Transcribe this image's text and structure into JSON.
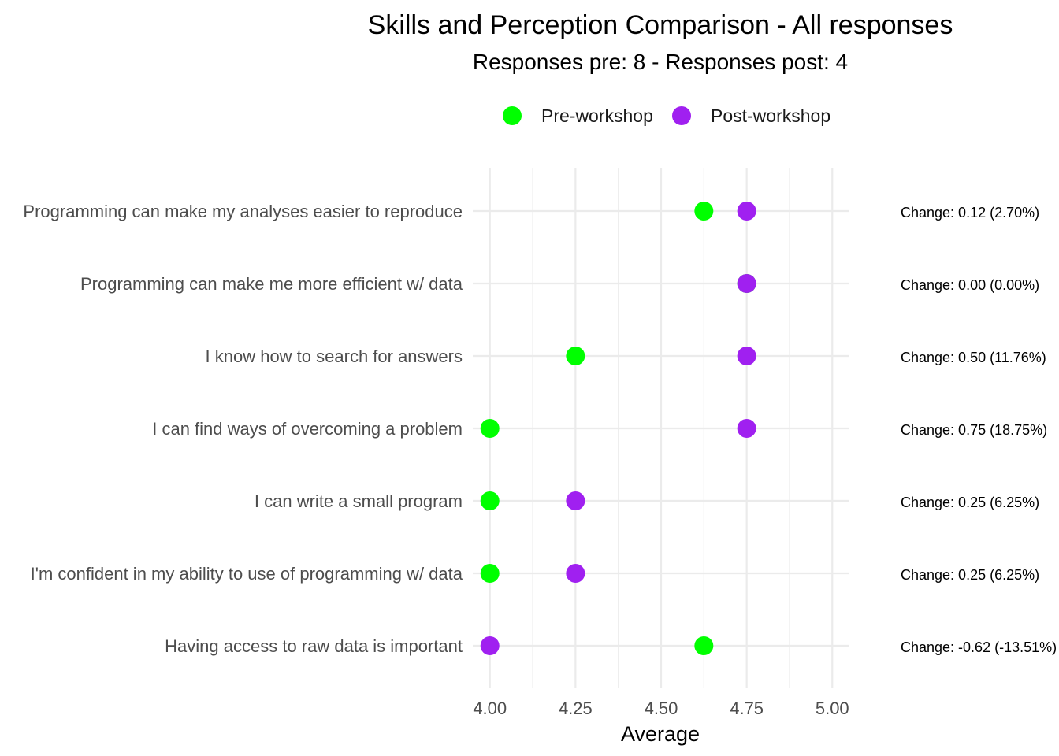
{
  "chart_data": {
    "type": "scatter",
    "title": "Skills and Perception Comparison - All responses",
    "subtitle": "Responses pre: 8 - Responses post: 4",
    "xlabel": "Average",
    "ylabel": "",
    "xlim": [
      3.98,
      5.05
    ],
    "x_ticks": [
      "4.00",
      "4.25",
      "4.50",
      "4.75",
      "5.00"
    ],
    "x_tick_values": [
      4.0,
      4.25,
      4.5,
      4.75,
      5.0
    ],
    "legend_position": "top",
    "grid": true,
    "categories": [
      "Programming can make my analyses easier to reproduce",
      "Programming can make me more efficient w/ data",
      "I know how to search for answers",
      "I can find ways of overcoming a problem",
      "I can write a small program",
      "I'm confident in my ability to use of programming w/ data",
      "Having access to raw data is important"
    ],
    "series": [
      {
        "name": "Pre-workshop",
        "color": "#00ff00",
        "values": [
          4.625,
          4.75,
          4.25,
          4.0,
          4.0,
          4.0,
          4.625
        ]
      },
      {
        "name": "Post-workshop",
        "color": "#a020f0",
        "values": [
          4.75,
          4.75,
          4.75,
          4.75,
          4.25,
          4.25,
          4.0
        ]
      }
    ],
    "annotations": [
      "Change: 0.12 (2.70%)",
      "Change: 0.00 (0.00%)",
      "Change: 0.50 (11.76%)",
      "Change: 0.75 (18.75%)",
      "Change: 0.25 (6.25%)",
      "Change: 0.25 (6.25%)",
      "Change: -0.62 (-13.51%)"
    ]
  }
}
